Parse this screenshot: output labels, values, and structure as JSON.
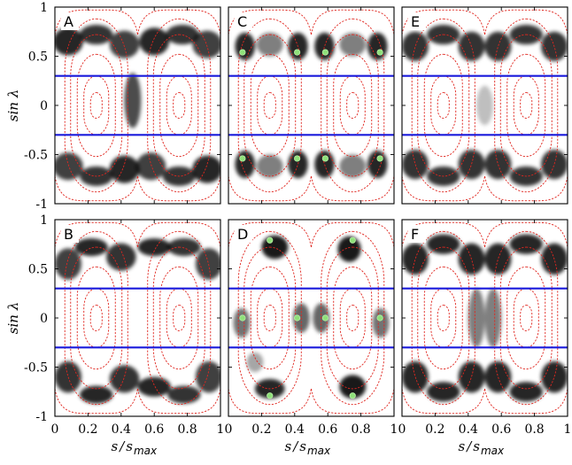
{
  "chart_data": {
    "type": "heatmap",
    "x_axis": {
      "label_var": "s",
      "label_den": "s",
      "label_den_sub": "max",
      "range": [
        0,
        1
      ],
      "ticks": [
        "0",
        "0.2",
        "0.4",
        "0.6",
        "0.8",
        "1"
      ],
      "tick_values": [
        0,
        0.2,
        0.4,
        0.6,
        0.8,
        1
      ]
    },
    "y_axis": {
      "label": "sin λ",
      "range": [
        -1,
        1
      ],
      "ticks": [
        "1",
        "0.5",
        "0",
        "-0.5",
        "-1"
      ],
      "tick_values": [
        1,
        0.5,
        0,
        -0.5,
        -1
      ]
    },
    "blue_lines_y": [
      0.3,
      -0.3
    ],
    "colors": {
      "contour": "#e0261f",
      "band": "#1a1adc",
      "marker": "#8fe07a",
      "density": "#000000"
    },
    "panels": [
      {
        "label": "A",
        "blobs": [
          [
            0.08,
            0.65,
            0.09,
            0.14,
            0.85
          ],
          [
            0.25,
            0.72,
            0.1,
            0.1,
            0.8
          ],
          [
            0.42,
            0.62,
            0.09,
            0.14,
            0.75
          ],
          [
            0.6,
            0.65,
            0.09,
            0.14,
            0.85
          ],
          [
            0.77,
            0.72,
            0.1,
            0.1,
            0.8
          ],
          [
            0.92,
            0.62,
            0.09,
            0.14,
            0.75
          ],
          [
            0.08,
            -0.62,
            0.09,
            0.14,
            0.75
          ],
          [
            0.25,
            -0.72,
            0.1,
            0.1,
            0.8
          ],
          [
            0.42,
            -0.65,
            0.09,
            0.14,
            0.85
          ],
          [
            0.58,
            -0.62,
            0.09,
            0.14,
            0.75
          ],
          [
            0.75,
            -0.72,
            0.1,
            0.1,
            0.8
          ],
          [
            0.92,
            -0.65,
            0.09,
            0.14,
            0.85
          ],
          [
            0.47,
            0.05,
            0.05,
            0.28,
            0.7
          ]
        ],
        "markers": []
      },
      {
        "label": "B",
        "blobs": [
          [
            0.08,
            0.55,
            0.08,
            0.16,
            0.75
          ],
          [
            0.22,
            0.72,
            0.1,
            0.09,
            0.85
          ],
          [
            0.4,
            0.62,
            0.09,
            0.14,
            0.8
          ],
          [
            0.6,
            0.72,
            0.1,
            0.09,
            0.85
          ],
          [
            0.78,
            0.72,
            0.1,
            0.09,
            0.8
          ],
          [
            0.93,
            0.55,
            0.08,
            0.16,
            0.75
          ],
          [
            0.08,
            -0.6,
            0.08,
            0.16,
            0.8
          ],
          [
            0.25,
            -0.78,
            0.1,
            0.09,
            0.85
          ],
          [
            0.42,
            -0.62,
            0.09,
            0.14,
            0.8
          ],
          [
            0.6,
            -0.7,
            0.1,
            0.1,
            0.85
          ],
          [
            0.78,
            -0.78,
            0.1,
            0.09,
            0.8
          ],
          [
            0.93,
            -0.6,
            0.08,
            0.16,
            0.75
          ]
        ],
        "markers": []
      },
      {
        "label": "C",
        "blobs": [
          [
            0.1,
            0.6,
            0.06,
            0.14,
            0.85
          ],
          [
            0.25,
            0.62,
            0.08,
            0.12,
            0.5
          ],
          [
            0.42,
            0.6,
            0.06,
            0.14,
            0.85
          ],
          [
            0.58,
            0.6,
            0.06,
            0.14,
            0.85
          ],
          [
            0.75,
            0.62,
            0.08,
            0.12,
            0.5
          ],
          [
            0.9,
            0.6,
            0.06,
            0.14,
            0.85
          ],
          [
            0.1,
            -0.6,
            0.06,
            0.14,
            0.85
          ],
          [
            0.25,
            -0.62,
            0.08,
            0.12,
            0.5
          ],
          [
            0.42,
            -0.6,
            0.06,
            0.14,
            0.85
          ],
          [
            0.58,
            -0.6,
            0.06,
            0.14,
            0.85
          ],
          [
            0.75,
            -0.62,
            0.08,
            0.12,
            0.5
          ],
          [
            0.9,
            -0.6,
            0.06,
            0.14,
            0.85
          ]
        ],
        "markers": [
          [
            0.085,
            0.54
          ],
          [
            0.415,
            0.54
          ],
          [
            0.585,
            0.54
          ],
          [
            0.915,
            0.54
          ],
          [
            0.085,
            -0.54
          ],
          [
            0.415,
            -0.54
          ],
          [
            0.585,
            -0.54
          ],
          [
            0.915,
            -0.54
          ]
        ]
      },
      {
        "label": "D",
        "blobs": [
          [
            0.28,
            0.72,
            0.08,
            0.12,
            0.9
          ],
          [
            0.73,
            0.7,
            0.07,
            0.13,
            0.9
          ],
          [
            0.08,
            -0.05,
            0.05,
            0.15,
            0.55
          ],
          [
            0.44,
            0.0,
            0.05,
            0.15,
            0.6
          ],
          [
            0.56,
            0.0,
            0.05,
            0.15,
            0.6
          ],
          [
            0.92,
            -0.05,
            0.05,
            0.15,
            0.55
          ],
          [
            0.25,
            -0.72,
            0.09,
            0.1,
            0.85
          ],
          [
            0.75,
            -0.7,
            0.08,
            0.12,
            0.9
          ],
          [
            0.16,
            -0.45,
            0.05,
            0.1,
            0.35
          ]
        ],
        "markers": [
          [
            0.25,
            0.79
          ],
          [
            0.75,
            0.79
          ],
          [
            0.085,
            0.0
          ],
          [
            0.415,
            0.0
          ],
          [
            0.585,
            0.0
          ],
          [
            0.915,
            0.0
          ],
          [
            0.25,
            -0.79
          ],
          [
            0.75,
            -0.79
          ]
        ]
      },
      {
        "label": "E",
        "blobs": [
          [
            0.08,
            0.6,
            0.08,
            0.15,
            0.8
          ],
          [
            0.25,
            0.72,
            0.1,
            0.1,
            0.8
          ],
          [
            0.42,
            0.6,
            0.08,
            0.15,
            0.8
          ],
          [
            0.58,
            0.6,
            0.08,
            0.15,
            0.8
          ],
          [
            0.75,
            0.72,
            0.1,
            0.1,
            0.8
          ],
          [
            0.92,
            0.6,
            0.08,
            0.15,
            0.8
          ],
          [
            0.08,
            -0.6,
            0.08,
            0.15,
            0.8
          ],
          [
            0.25,
            -0.72,
            0.1,
            0.1,
            0.8
          ],
          [
            0.42,
            -0.6,
            0.08,
            0.15,
            0.8
          ],
          [
            0.58,
            -0.6,
            0.08,
            0.15,
            0.8
          ],
          [
            0.75,
            -0.72,
            0.1,
            0.1,
            0.8
          ],
          [
            0.92,
            -0.6,
            0.08,
            0.15,
            0.8
          ],
          [
            0.5,
            0.0,
            0.05,
            0.2,
            0.25
          ]
        ],
        "markers": []
      },
      {
        "label": "F",
        "blobs": [
          [
            0.08,
            0.6,
            0.08,
            0.16,
            0.85
          ],
          [
            0.25,
            0.75,
            0.1,
            0.1,
            0.85
          ],
          [
            0.42,
            0.6,
            0.08,
            0.16,
            0.85
          ],
          [
            0.58,
            0.6,
            0.08,
            0.16,
            0.85
          ],
          [
            0.75,
            0.75,
            0.1,
            0.1,
            0.85
          ],
          [
            0.92,
            0.6,
            0.08,
            0.16,
            0.85
          ],
          [
            0.08,
            -0.6,
            0.08,
            0.16,
            0.85
          ],
          [
            0.25,
            -0.75,
            0.1,
            0.1,
            0.85
          ],
          [
            0.42,
            -0.6,
            0.08,
            0.16,
            0.85
          ],
          [
            0.58,
            -0.6,
            0.08,
            0.16,
            0.85
          ],
          [
            0.75,
            -0.75,
            0.1,
            0.1,
            0.85
          ],
          [
            0.92,
            -0.6,
            0.08,
            0.16,
            0.85
          ],
          [
            0.45,
            0.0,
            0.05,
            0.3,
            0.5
          ],
          [
            0.55,
            0.0,
            0.05,
            0.3,
            0.5
          ]
        ],
        "markers": []
      }
    ]
  }
}
